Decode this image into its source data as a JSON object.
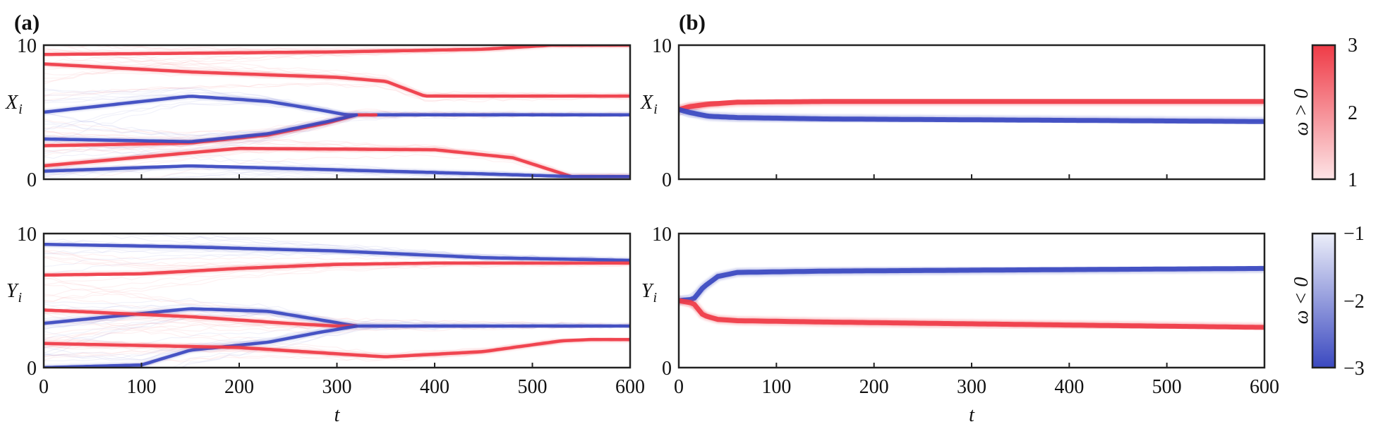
{
  "panel_labels": {
    "a": "(a)",
    "b": "(b)"
  },
  "y_labels": {
    "top": "X",
    "bottom": "Y",
    "subscript": "i"
  },
  "x_label": "t",
  "colorbars": {
    "positive": {
      "label": "ω > 0",
      "ticks": [
        "3",
        "2",
        "1"
      ],
      "range": [
        1,
        3
      ],
      "color_low": "#fde4e6",
      "color_high": "#ef3b47"
    },
    "negative": {
      "label": "ω < 0",
      "ticks": [
        "−1",
        "−2",
        "−3"
      ],
      "range": [
        -3,
        -1
      ],
      "color_low": "#eceef9",
      "color_high": "#3b49c0"
    }
  },
  "colors": {
    "red": "#ef3b47",
    "blue": "#3b49c0",
    "frame": "#222222"
  },
  "chart_data": [
    {
      "id": "a-X",
      "type": "line",
      "panel": "(a)",
      "xlim": [
        0,
        600
      ],
      "ylim": [
        0,
        10
      ],
      "xticks": [],
      "yticks": [
        "0",
        "10"
      ],
      "ylabel": "X_i",
      "series": [
        {
          "color": "red",
          "x": [
            0,
            150,
            300,
            450,
            520,
            600
          ],
          "y": [
            9.3,
            9.4,
            9.5,
            9.7,
            10.0,
            10.0
          ]
        },
        {
          "color": "red",
          "x": [
            0,
            150,
            300,
            350,
            390,
            600
          ],
          "y": [
            8.6,
            8.0,
            7.6,
            7.3,
            6.2,
            6.2
          ]
        },
        {
          "color": "blue",
          "x": [
            0,
            100,
            150,
            230,
            280,
            310,
            340,
            600
          ],
          "y": [
            5.0,
            5.8,
            6.2,
            5.8,
            5.2,
            4.8,
            4.8,
            4.8
          ]
        },
        {
          "color": "red",
          "x": [
            0,
            150,
            230,
            290,
            320,
            340
          ],
          "y": [
            2.5,
            2.7,
            3.3,
            4.2,
            4.8,
            4.8
          ]
        },
        {
          "color": "blue",
          "x": [
            0,
            150,
            230,
            290,
            320
          ],
          "y": [
            3.0,
            2.8,
            3.4,
            4.3,
            4.8
          ]
        },
        {
          "color": "red",
          "x": [
            0,
            200,
            400,
            480,
            540,
            600
          ],
          "y": [
            1.0,
            2.3,
            2.2,
            1.6,
            0.2,
            0.2
          ]
        },
        {
          "color": "blue",
          "x": [
            0,
            150,
            300,
            450,
            540,
            600
          ],
          "y": [
            0.6,
            1.0,
            0.7,
            0.4,
            0.2,
            0.2
          ]
        }
      ]
    },
    {
      "id": "a-Y",
      "type": "line",
      "panel": "(a)",
      "xlim": [
        0,
        600
      ],
      "ylim": [
        0,
        10
      ],
      "xticks": [
        "0",
        "100",
        "200",
        "300",
        "400",
        "500",
        "600"
      ],
      "yticks": [
        "0",
        "10"
      ],
      "ylabel": "Y_i",
      "xlabel": "t",
      "series": [
        {
          "color": "blue",
          "x": [
            0,
            150,
            300,
            450,
            600
          ],
          "y": [
            9.2,
            9.0,
            8.7,
            8.2,
            8.0
          ]
        },
        {
          "color": "red",
          "x": [
            0,
            100,
            200,
            300,
            400,
            600
          ],
          "y": [
            6.9,
            7.0,
            7.4,
            7.7,
            7.8,
            7.8
          ]
        },
        {
          "color": "blue",
          "x": [
            0,
            150,
            230,
            280,
            320,
            600
          ],
          "y": [
            3.3,
            4.4,
            4.2,
            3.6,
            3.1,
            3.1
          ]
        },
        {
          "color": "red",
          "x": [
            0,
            150,
            250,
            300,
            320
          ],
          "y": [
            4.3,
            3.8,
            3.3,
            3.1,
            3.1
          ]
        },
        {
          "color": "blue",
          "x": [
            0,
            100,
            150,
            230,
            280,
            320
          ],
          "y": [
            0.0,
            0.2,
            1.3,
            1.9,
            2.6,
            3.1
          ]
        },
        {
          "color": "red",
          "x": [
            0,
            200,
            350,
            450,
            530,
            560,
            600
          ],
          "y": [
            1.8,
            1.5,
            0.8,
            1.2,
            2.0,
            2.1,
            2.1
          ]
        }
      ]
    },
    {
      "id": "b-X",
      "type": "line",
      "panel": "(b)",
      "xlim": [
        0,
        600
      ],
      "ylim": [
        0,
        10
      ],
      "xticks": [],
      "yticks": [
        "0",
        "10"
      ],
      "ylabel": "X_i",
      "series": [
        {
          "color": "red",
          "x": [
            0,
            10,
            30,
            60,
            150,
            600
          ],
          "y": [
            5.2,
            5.4,
            5.6,
            5.75,
            5.8,
            5.8
          ]
        },
        {
          "color": "blue",
          "x": [
            0,
            10,
            30,
            60,
            150,
            600
          ],
          "y": [
            5.2,
            5.0,
            4.7,
            4.6,
            4.5,
            4.3
          ]
        }
      ]
    },
    {
      "id": "b-Y",
      "type": "line",
      "panel": "(b)",
      "xlim": [
        0,
        600
      ],
      "ylim": [
        0,
        10
      ],
      "xticks": [
        "0",
        "100",
        "200",
        "300",
        "400",
        "500",
        "600"
      ],
      "yticks": [
        "0",
        "10"
      ],
      "ylabel": "Y_i",
      "xlabel": "t",
      "series": [
        {
          "color": "blue",
          "x": [
            0,
            15,
            25,
            40,
            60,
            150,
            600
          ],
          "y": [
            5.0,
            5.1,
            6.0,
            6.8,
            7.1,
            7.2,
            7.4
          ]
        },
        {
          "color": "red",
          "x": [
            0,
            15,
            25,
            40,
            60,
            150,
            600
          ],
          "y": [
            5.0,
            4.8,
            3.9,
            3.6,
            3.5,
            3.4,
            3.0
          ]
        }
      ]
    }
  ]
}
